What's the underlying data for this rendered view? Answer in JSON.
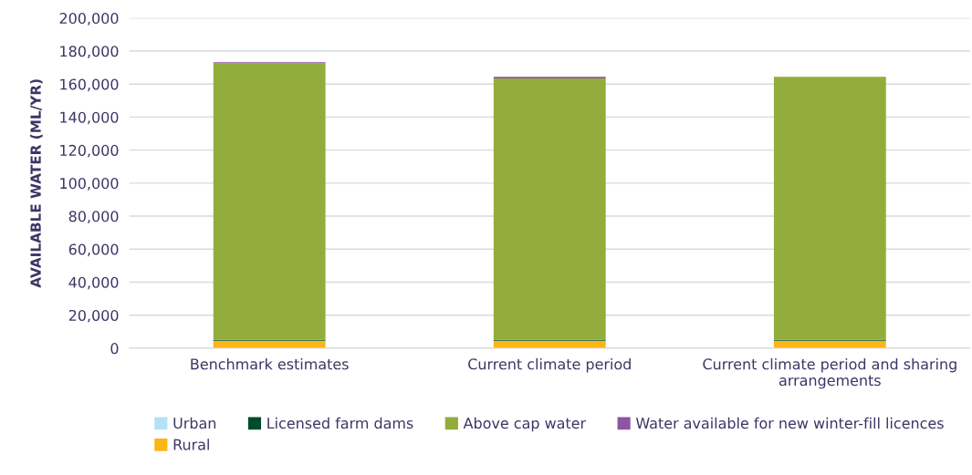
{
  "chart_data": {
    "type": "bar",
    "stacked": true,
    "ylabel": "AVAILABLE WATER (ML/YR)",
    "categories": [
      "Benchmark estimates",
      "Current climate period",
      "Current climate period and sharing arrangements"
    ],
    "series": [
      {
        "name": "Urban",
        "color": "#b4e1f5",
        "values": [
          0,
          0,
          0
        ]
      },
      {
        "name": "Rural",
        "color": "#fbb515",
        "values": [
          4500,
          4500,
          4500
        ]
      },
      {
        "name": "Licensed farm dams",
        "color": "#004b2d",
        "values": [
          500,
          500,
          500
        ]
      },
      {
        "name": "Above cap water",
        "color": "#92ad3c",
        "values": [
          167600,
          158500,
          159400
        ]
      },
      {
        "name": "Water available for new winter-fill licences",
        "color": "#8f55a5",
        "values": [
          700,
          900,
          0
        ]
      }
    ],
    "ylim": [
      0,
      200000
    ],
    "yticks": [
      {
        "value": 0,
        "label": "0"
      },
      {
        "value": 20000,
        "label": "20,000"
      },
      {
        "value": 40000,
        "label": "40,000"
      },
      {
        "value": 60000,
        "label": "60,000"
      },
      {
        "value": 80000,
        "label": "80,000"
      },
      {
        "value": 100000,
        "label": "100,000"
      },
      {
        "value": 120000,
        "label": "120,000"
      },
      {
        "value": 140000,
        "label": "140,000"
      },
      {
        "value": 160000,
        "label": "160,000"
      },
      {
        "value": 180000,
        "label": "180,000"
      },
      {
        "value": 200000,
        "label": "200,000"
      }
    ],
    "grid": "y",
    "legend": "bottom"
  }
}
